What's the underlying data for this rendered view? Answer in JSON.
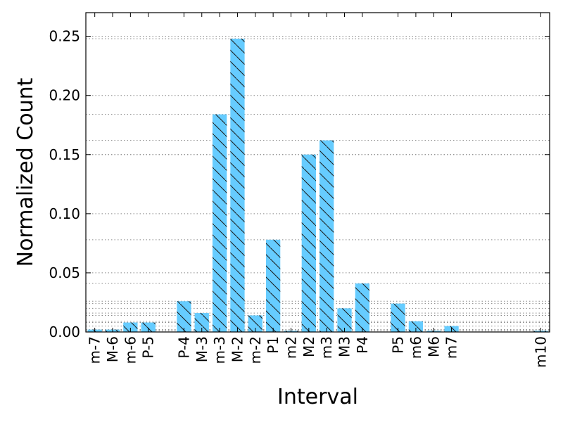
{
  "chart_data": {
    "type": "bar",
    "xlabel": "Interval",
    "ylabel": "Normalized Count",
    "ylim": [
      0,
      0.27
    ],
    "y_ticks": [
      "0.00",
      "0.05",
      "0.10",
      "0.15",
      "0.20",
      "0.25"
    ],
    "grid": "horizontal dotted lines at bar heights",
    "bar_color": "#66ccff",
    "hatch": "diagonal",
    "x": [
      0,
      1,
      2,
      3,
      5,
      6,
      7,
      8,
      9,
      10,
      11,
      12,
      13,
      14,
      15,
      17,
      18,
      19,
      20,
      25
    ],
    "categories": [
      "m-7",
      "M-6",
      "m-6",
      "P-5",
      "P-4",
      "M-3",
      "m-3",
      "M-2",
      "m-2",
      "P1",
      "m2",
      "M2",
      "m3",
      "M3",
      "P4",
      "P5",
      "m6",
      "M6",
      "m7",
      "m10"
    ],
    "values": [
      0.002,
      0.002,
      0.008,
      0.008,
      0.026,
      0.016,
      0.184,
      0.248,
      0.014,
      0.078,
      0.001,
      0.15,
      0.162,
      0.02,
      0.041,
      0.024,
      0.009,
      0.001,
      0.005,
      0.001
    ]
  }
}
